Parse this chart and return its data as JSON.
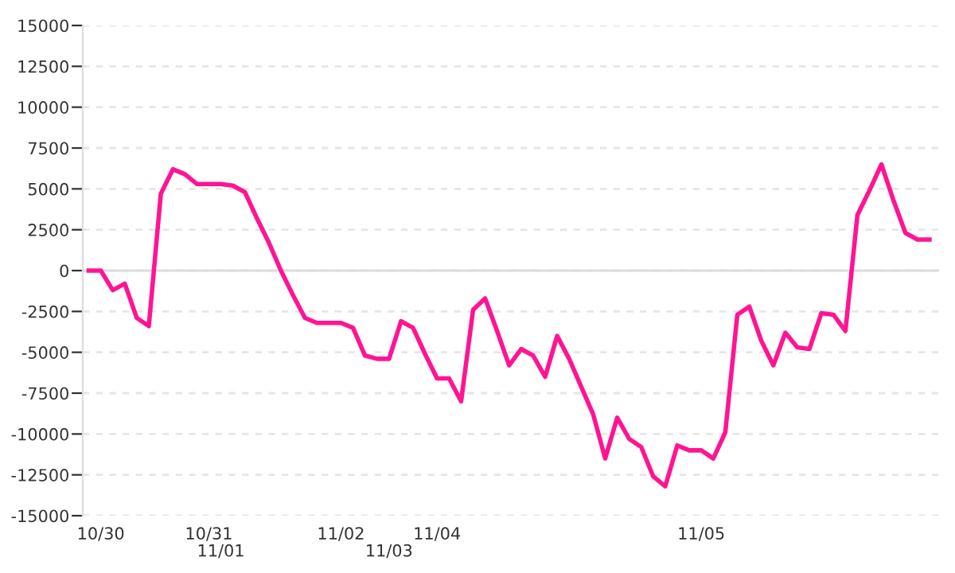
{
  "chart_data": {
    "type": "line",
    "categories": [
      null,
      "10/30",
      null,
      null,
      null,
      null,
      null,
      null,
      null,
      null,
      "10/31",
      "11/01",
      null,
      null,
      null,
      null,
      null,
      null,
      null,
      null,
      null,
      "11/02",
      null,
      null,
      null,
      "11/03",
      null,
      null,
      null,
      "11/04",
      null,
      null,
      null,
      null,
      null,
      null,
      null,
      null,
      null,
      null,
      null,
      null,
      null,
      null,
      null,
      null,
      null,
      null,
      null,
      null,
      null,
      "11/05",
      null,
      null,
      null,
      null,
      null,
      null,
      null,
      null,
      null,
      null,
      null,
      null,
      null,
      null,
      null,
      null,
      null,
      null,
      null
    ],
    "series": [
      {
        "color": "#ff1493",
        "values": [
          0,
          0,
          -1200,
          -800,
          -2900,
          -3400,
          4700,
          6200,
          5900,
          5300,
          5300,
          5300,
          5200,
          4800,
          3200,
          1700,
          0,
          -1500,
          -2900,
          -3200,
          -3200,
          -3200,
          -3500,
          -5200,
          -5400,
          -5400,
          -3100,
          -3500,
          -5100,
          -6600,
          -6600,
          -8000,
          -2400,
          -1700,
          -3700,
          -5800,
          -4800,
          -5200,
          -6500,
          -4000,
          -5400,
          -7100,
          -8800,
          -11500,
          -9000,
          -10300,
          -10800,
          -12600,
          -13200,
          -10700,
          -11000,
          -11000,
          -11500,
          -9900,
          -2700,
          -2200,
          -4300,
          -5800,
          -3800,
          -4700,
          -4800,
          -2600,
          -2700,
          -3700,
          3400,
          4900,
          6500,
          4300,
          2300,
          1900,
          1900
        ]
      }
    ],
    "ylim": [
      -15000,
      15000
    ],
    "yticks": [
      -15000,
      -12500,
      -10000,
      -7500,
      -5000,
      -2500,
      0,
      2500,
      5000,
      7500,
      10000,
      12500,
      15000
    ],
    "grid": "y",
    "legend": false,
    "marker": "none",
    "line_style": "solid",
    "ref_lines": [
      {
        "axis": "y",
        "value": 0,
        "label": null,
        "color": "#dddddd"
      }
    ]
  }
}
